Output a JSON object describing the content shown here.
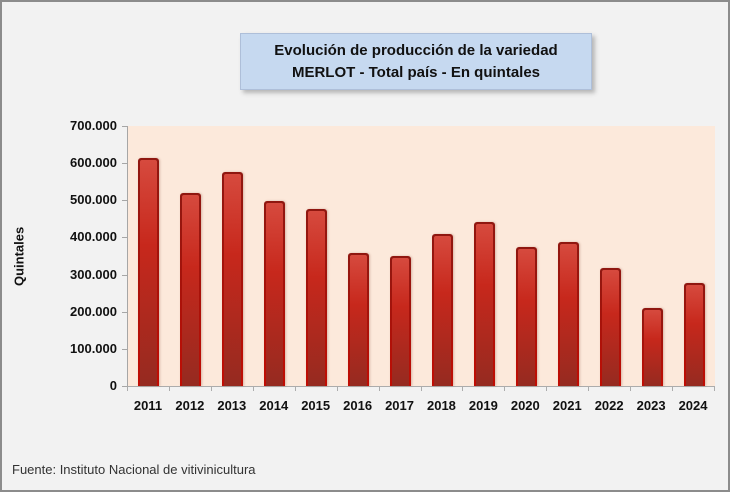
{
  "window": {
    "background": "#F2F2F2",
    "border_color": "#8C8C8C"
  },
  "title": {
    "line1": "Evolución de producción de la variedad",
    "line2": "MERLOT - Total país - En quintales",
    "background": "#C6D9F0"
  },
  "source_note": "Fuente: Instituto Nacional de vitivinicultura",
  "chart_data": {
    "type": "bar",
    "title": "Evolución de producción de la variedad MERLOT - Total país - En quintales",
    "categories": [
      "2011",
      "2012",
      "2013",
      "2014",
      "2015",
      "2016",
      "2017",
      "2018",
      "2019",
      "2020",
      "2021",
      "2022",
      "2023",
      "2024"
    ],
    "values": [
      615000,
      520000,
      576000,
      497000,
      478000,
      358000,
      350000,
      409000,
      442000,
      374000,
      387000,
      317000,
      210000,
      278000
    ],
    "xlabel": "",
    "ylabel": "Quintales",
    "ylim": [
      0,
      700000
    ],
    "yticks": [
      0,
      100000,
      200000,
      300000,
      400000,
      500000,
      600000,
      700000
    ],
    "ytick_labels": [
      "0",
      "100.000",
      "200.000",
      "300.000",
      "400.000",
      "500.000",
      "600.000",
      "700.000"
    ],
    "grid": false,
    "legend": false,
    "plot_background": "#FCE9DB",
    "bar_fill_top": "#D64A3E",
    "bar_fill_bottom": "#952A20",
    "bar_border_color": "#9B150C"
  }
}
